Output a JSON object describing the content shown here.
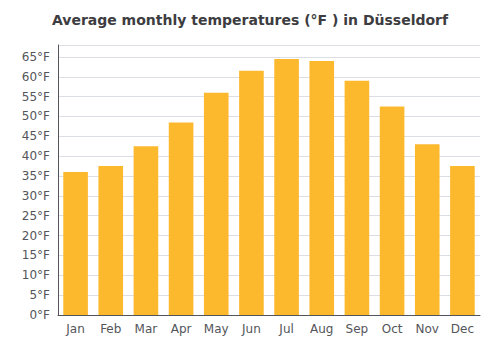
{
  "chart_data": {
    "type": "bar",
    "title": "Average monthly temperatures (°F ) in Düsseldorf",
    "categories": [
      "Jan",
      "Feb",
      "Mar",
      "Apr",
      "May",
      "Jun",
      "Jul",
      "Aug",
      "Sep",
      "Oct",
      "Nov",
      "Dec"
    ],
    "values": [
      36,
      37.5,
      42.5,
      48.5,
      56,
      61.5,
      64.5,
      64,
      59,
      52.5,
      43,
      37.5
    ],
    "color": "#FDB92E",
    "ylim": [
      0,
      68
    ],
    "yticks": [
      {
        "value": 0,
        "label": "0°F"
      },
      {
        "value": 5,
        "label": "5°F"
      },
      {
        "value": 10,
        "label": "10°F"
      },
      {
        "value": 15,
        "label": "15°F"
      },
      {
        "value": 20,
        "label": "20°F"
      },
      {
        "value": 25,
        "label": "25°F"
      },
      {
        "value": 30,
        "label": "30°F"
      },
      {
        "value": 35,
        "label": "35°F"
      },
      {
        "value": 40,
        "label": "40°F"
      },
      {
        "value": 45,
        "label": "45°F"
      },
      {
        "value": 50,
        "label": "50°F"
      },
      {
        "value": 55,
        "label": "55°F"
      },
      {
        "value": 60,
        "label": "60°F"
      },
      {
        "value": 65,
        "label": "65°F"
      }
    ],
    "grid": true
  }
}
